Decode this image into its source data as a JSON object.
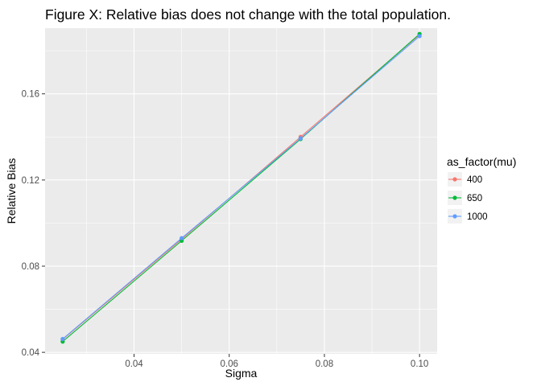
{
  "chart_data": {
    "type": "line",
    "title": "Figure X: Relative bias does not change with the total population.",
    "xlabel": "Sigma",
    "ylabel": "Relative Bias",
    "x": [
      0.025,
      0.05,
      0.075,
      0.1
    ],
    "xlim": [
      0.0213,
      0.1037
    ],
    "ylim": [
      0.0393,
      0.1905
    ],
    "xticks": [
      0.04,
      0.06,
      0.08,
      0.1
    ],
    "xtick_labels": [
      "0.04",
      "0.06",
      "0.08",
      "0.10"
    ],
    "yticks": [
      0.04,
      0.08,
      0.12,
      0.16
    ],
    "ytick_labels": [
      "0.04",
      "0.08",
      "0.12",
      "0.16"
    ],
    "grid": true,
    "legend": {
      "title": "as_factor(mu)",
      "position": "right"
    },
    "series": [
      {
        "name": "400",
        "color": "#F8766D",
        "values": [
          0.046,
          0.0925,
          0.14,
          0.1875
        ]
      },
      {
        "name": "650",
        "color": "#00BA38",
        "values": [
          0.045,
          0.0918,
          0.139,
          0.1878
        ]
      },
      {
        "name": "1000",
        "color": "#619CFF",
        "values": [
          0.0462,
          0.093,
          0.1393,
          0.1868
        ]
      }
    ]
  }
}
